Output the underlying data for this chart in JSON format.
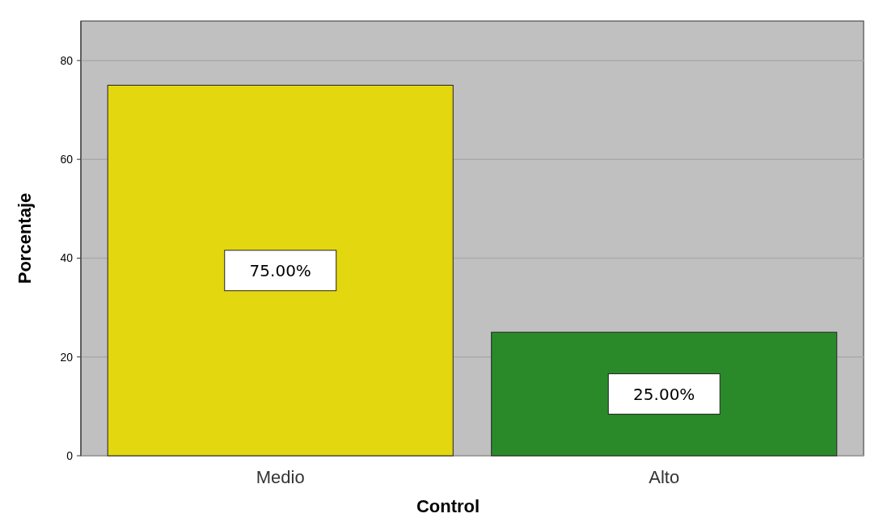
{
  "chart_data": {
    "type": "bar",
    "xlabel": "Control",
    "ylabel": "Porcentaje",
    "categories": [
      "Medio",
      "Alto"
    ],
    "values": [
      75,
      25
    ],
    "colors": [
      "#e3d70f",
      "#2a8a2a"
    ],
    "value_labels": [
      "75.00%",
      "25.00%"
    ],
    "ylim": [
      0,
      88
    ],
    "yticks": [
      0,
      20,
      40,
      60,
      80
    ],
    "grid": "y"
  }
}
